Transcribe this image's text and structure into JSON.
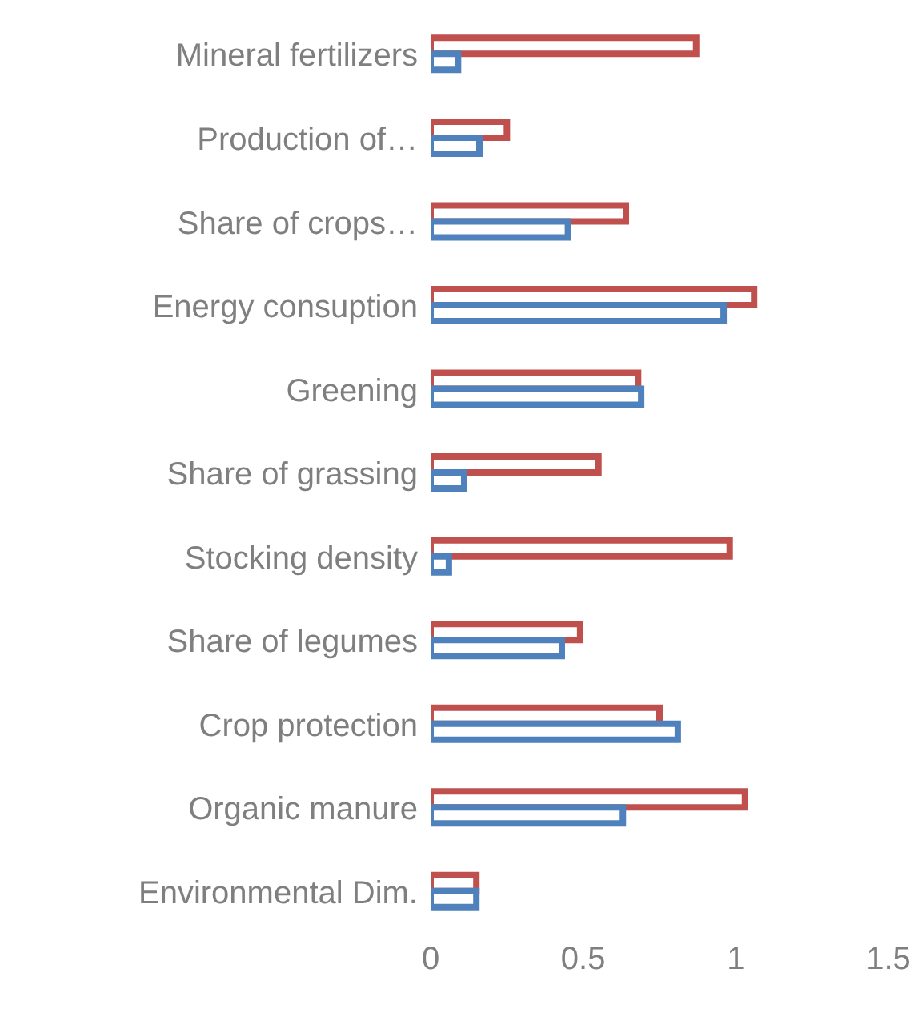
{
  "chart_data": {
    "type": "bar",
    "orientation": "horizontal",
    "categories": [
      "Mineral fertilizers",
      "Production of…",
      "Share of crops…",
      "Energy consuption",
      "Greening",
      "Share of grassing",
      "Stocking density",
      "Share of legumes",
      "Crop protection",
      "Organic manure",
      "Environmental Dim."
    ],
    "series": [
      {
        "color": "#c0504d",
        "values": [
          0.87,
          0.25,
          0.64,
          1.06,
          0.68,
          0.55,
          0.98,
          0.49,
          0.75,
          1.03,
          0.15
        ]
      },
      {
        "color": "#4f81bd",
        "values": [
          0.09,
          0.16,
          0.45,
          0.96,
          0.69,
          0.11,
          0.06,
          0.43,
          0.81,
          0.63,
          0.15
        ]
      }
    ],
    "xlim": [
      0,
      1.5
    ],
    "xticks": [
      0,
      0.5,
      1,
      1.5
    ]
  }
}
